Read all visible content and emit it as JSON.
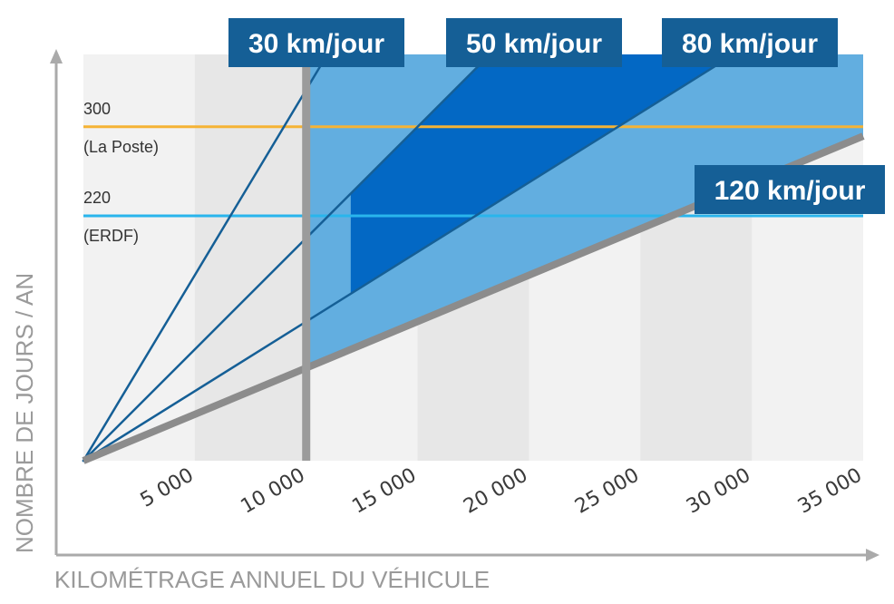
{
  "chart_data": {
    "type": "line",
    "xlabel": "KILOMÉTRAGE  ANNUEL DU VÉHICULE",
    "ylabel": "NOMBRE DE JOURS / AN",
    "xlim": [
      0,
      35000
    ],
    "ylim": [
      0,
      365
    ],
    "x_ticks": [
      5000,
      10000,
      15000,
      20000,
      25000,
      30000,
      35000
    ],
    "x_tick_labels": [
      "5 000",
      "10 000",
      "15 000",
      "20 000",
      "25 000",
      "30 000",
      "35 000"
    ],
    "reference_lines": [
      {
        "value": 300,
        "label": "300",
        "sublabel": "(La Poste)",
        "color": "#f5b335"
      },
      {
        "value": 220,
        "label": "220",
        "sublabel": "(ERDF)",
        "color": "#29b5ec"
      }
    ],
    "series": [
      {
        "name": "30 km/jour",
        "km_per_day": 30,
        "color": "#155f96"
      },
      {
        "name": "50 km/jour",
        "km_per_day": 50,
        "color": "#155f96"
      },
      {
        "name": "80 km/jour",
        "km_per_day": 80,
        "color": "#155f96"
      },
      {
        "name": "120 km/jour",
        "km_per_day": 120,
        "color": "#8c8c8c"
      }
    ],
    "vertical_threshold_km": 10000,
    "colors": {
      "light_region": "#62aee0",
      "dark_region": "#0368c4",
      "band_grey": "#e7e7e7",
      "band_light": "#f2f2f2",
      "label_box": "#155f96",
      "threshold": "#9b9b9b"
    }
  }
}
